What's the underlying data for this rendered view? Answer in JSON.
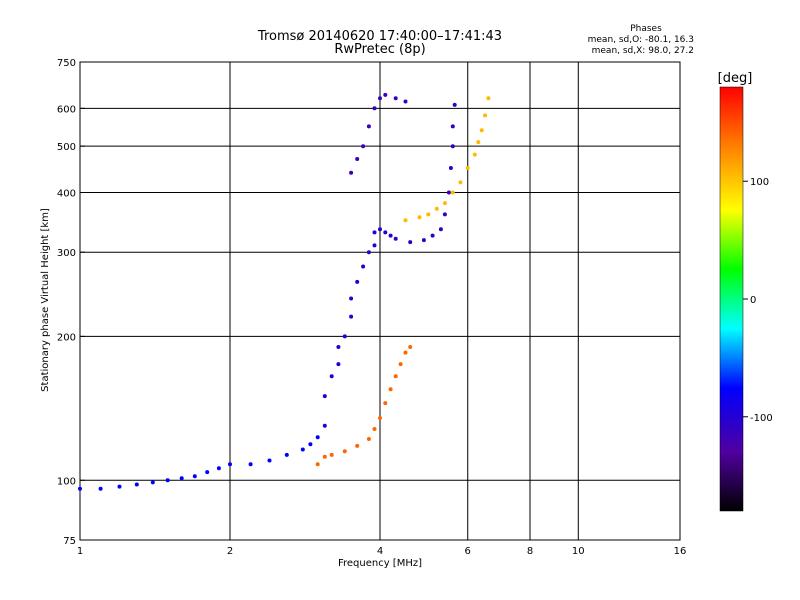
{
  "chart_data": {
    "type": "scatter",
    "title": "Tromsø 20140620 17:40:00–17:41:43",
    "subtitle": "RwPretec (8p)",
    "xlabel": "Frequency [MHz]",
    "ylabel": "Stationary phase Virtual Height [km]",
    "x_scale": "log",
    "y_scale": "log",
    "xlim": [
      1,
      16
    ],
    "ylim": [
      75,
      750
    ],
    "x_ticks": [
      1,
      2,
      4,
      6,
      8,
      10,
      16
    ],
    "x_tick_labels": [
      "1",
      "2",
      "4",
      "6",
      "8",
      "10",
      "16"
    ],
    "y_ticks": [
      75,
      100,
      200,
      300,
      400,
      500,
      600,
      750
    ],
    "y_tick_labels": [
      "75",
      "100",
      "200",
      "300",
      "400",
      "500",
      "600",
      "750"
    ],
    "x_grid": [
      2,
      4,
      6,
      8,
      10
    ],
    "y_grid": [
      100,
      200,
      300,
      400,
      500,
      600
    ],
    "stats": {
      "heading": "Phases",
      "line_o": "mean, sd,O: -80.1, 16.3",
      "line_x": "mean, sd,X:  98.0, 27.2"
    },
    "colorbar": {
      "label": "[deg]",
      "range": [
        -180,
        180
      ],
      "ticks": [
        100,
        0,
        -100
      ],
      "tick_labels": [
        "100",
        "0",
        "-100"
      ],
      "colors": [
        "#ff0000",
        "#ff8000",
        "#ffff00",
        "#00ff00",
        "#00ffff",
        "#0000ff",
        "#5000a0",
        "#000000"
      ]
    },
    "series": [
      {
        "name": "",
        "color_value": -75,
        "x": [
          1.0,
          1.1,
          1.2,
          1.3,
          1.4,
          1.5,
          1.6,
          1.7,
          1.8,
          1.9,
          2.0,
          2.2,
          2.4,
          2.6,
          2.8,
          2.9,
          3.0
        ],
        "y": [
          96,
          96,
          97,
          98,
          99,
          100,
          101,
          102,
          104,
          106,
          108,
          108,
          110,
          113,
          116,
          119,
          123
        ]
      },
      {
        "name": "",
        "color_value": -100,
        "x": [
          3.1,
          3.1,
          3.2,
          3.3,
          3.3,
          3.4,
          3.5,
          3.5,
          3.6,
          3.7,
          3.8,
          3.9,
          3.9,
          4.0,
          4.1,
          4.2
        ],
        "y": [
          130,
          150,
          165,
          175,
          190,
          200,
          220,
          240,
          260,
          280,
          300,
          310,
          330,
          335,
          330,
          325
        ]
      },
      {
        "name": "",
        "color_value": -110,
        "x": [
          4.3,
          4.6,
          4.9,
          5.1,
          5.3,
          5.4,
          5.5,
          5.55,
          5.6,
          5.6,
          5.65
        ],
        "y": [
          320,
          315,
          318,
          325,
          335,
          360,
          400,
          450,
          500,
          550,
          610
        ]
      },
      {
        "name": "",
        "color_value": -115,
        "x": [
          3.5,
          3.6,
          3.7,
          3.8,
          3.9,
          4.0,
          4.1,
          4.3,
          4.5
        ],
        "y": [
          440,
          470,
          500,
          550,
          600,
          630,
          640,
          630,
          620
        ]
      },
      {
        "name": "",
        "color_value": 140,
        "x": [
          3.0,
          3.1,
          3.2,
          3.4,
          3.6,
          3.8,
          3.9,
          4.0,
          4.1,
          4.2,
          4.3,
          4.4,
          4.5,
          4.6
        ],
        "y": [
          108,
          112,
          113,
          115,
          118,
          122,
          128,
          135,
          145,
          155,
          165,
          175,
          185,
          190
        ]
      },
      {
        "name": "",
        "color_value": 105,
        "x": [
          4.5,
          4.8,
          5.0,
          5.2,
          5.4,
          5.6,
          5.8,
          6.0,
          6.2,
          6.3,
          6.4,
          6.5,
          6.6
        ],
        "y": [
          350,
          355,
          360,
          370,
          380,
          400,
          420,
          450,
          480,
          510,
          540,
          580,
          630
        ]
      }
    ]
  }
}
